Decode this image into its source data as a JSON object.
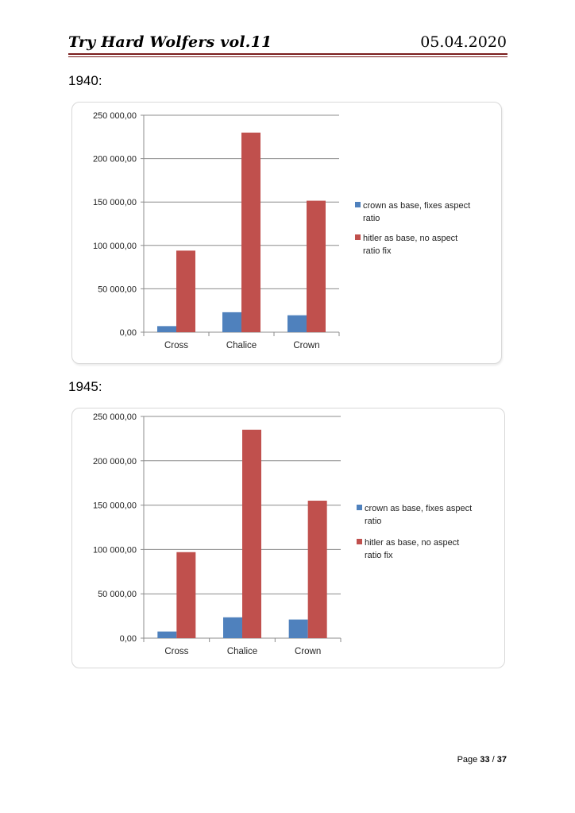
{
  "header": {
    "title": "Try Hard Wolfers vol.11",
    "date": "05.04.2020"
  },
  "sections": [
    {
      "label": "1940:"
    },
    {
      "label": "1945:"
    }
  ],
  "chart_data": [
    {
      "type": "bar",
      "title": "",
      "xlabel": "",
      "ylabel": "",
      "categories": [
        "Cross",
        "Chalice",
        "Crown"
      ],
      "series": [
        {
          "name": "crown as base, fixes aspect ratio",
          "values": [
            7000,
            23000,
            19500
          ],
          "color": "#4f81bd"
        },
        {
          "name": "hitler as base, no aspect ratio fix",
          "values": [
            94000,
            230000,
            151500
          ],
          "color": "#c0504d"
        }
      ],
      "ylim": [
        0,
        250000
      ],
      "yticks": [
        "0,00",
        "50 000,00",
        "100 000,00",
        "150 000,00",
        "200 000,00",
        "250 000,00"
      ],
      "grid": true,
      "legend": "right"
    },
    {
      "type": "bar",
      "title": "",
      "xlabel": "",
      "ylabel": "",
      "categories": [
        "Cross",
        "Chalice",
        "Crown"
      ],
      "series": [
        {
          "name": "crown as base, fixes aspect ratio",
          "values": [
            7500,
            23500,
            21000
          ],
          "color": "#4f81bd"
        },
        {
          "name": "hitler as base, no aspect ratio fix",
          "values": [
            97000,
            235000,
            155000
          ],
          "color": "#c0504d"
        }
      ],
      "ylim": [
        0,
        250000
      ],
      "yticks": [
        "0,00",
        "50 000,00",
        "100 000,00",
        "150 000,00",
        "200 000,00",
        "250 000,00"
      ],
      "grid": true,
      "legend": "right"
    }
  ],
  "footer": {
    "page_prefix": "Page ",
    "page_current": "33",
    "page_sep": " / ",
    "page_total": "37"
  }
}
